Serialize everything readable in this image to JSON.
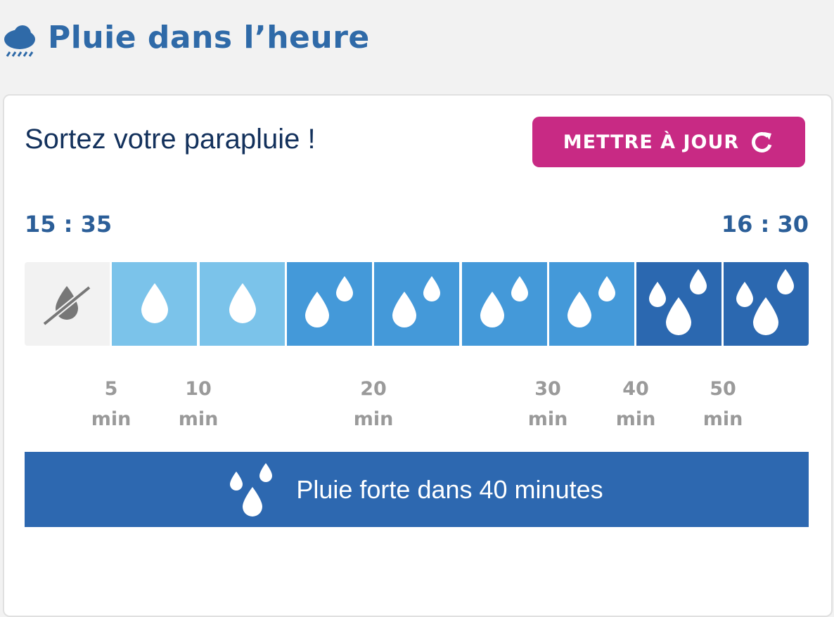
{
  "header": {
    "title": "Pluie dans l’heure"
  },
  "card": {
    "message": "Sortez votre parapluie !",
    "button": "METTRE À JOUR",
    "start_time": "15 : 35",
    "end_time": "16 : 30",
    "ticks": [
      {
        "number": "5",
        "unit": "min"
      },
      {
        "number": "10",
        "unit": "min"
      },
      {
        "number": "20",
        "unit": "min"
      },
      {
        "number": "30",
        "unit": "min"
      },
      {
        "number": "40",
        "unit": "min"
      },
      {
        "number": "50",
        "unit": "min"
      }
    ],
    "banner": "Pluie forte dans 40 minutes"
  }
}
